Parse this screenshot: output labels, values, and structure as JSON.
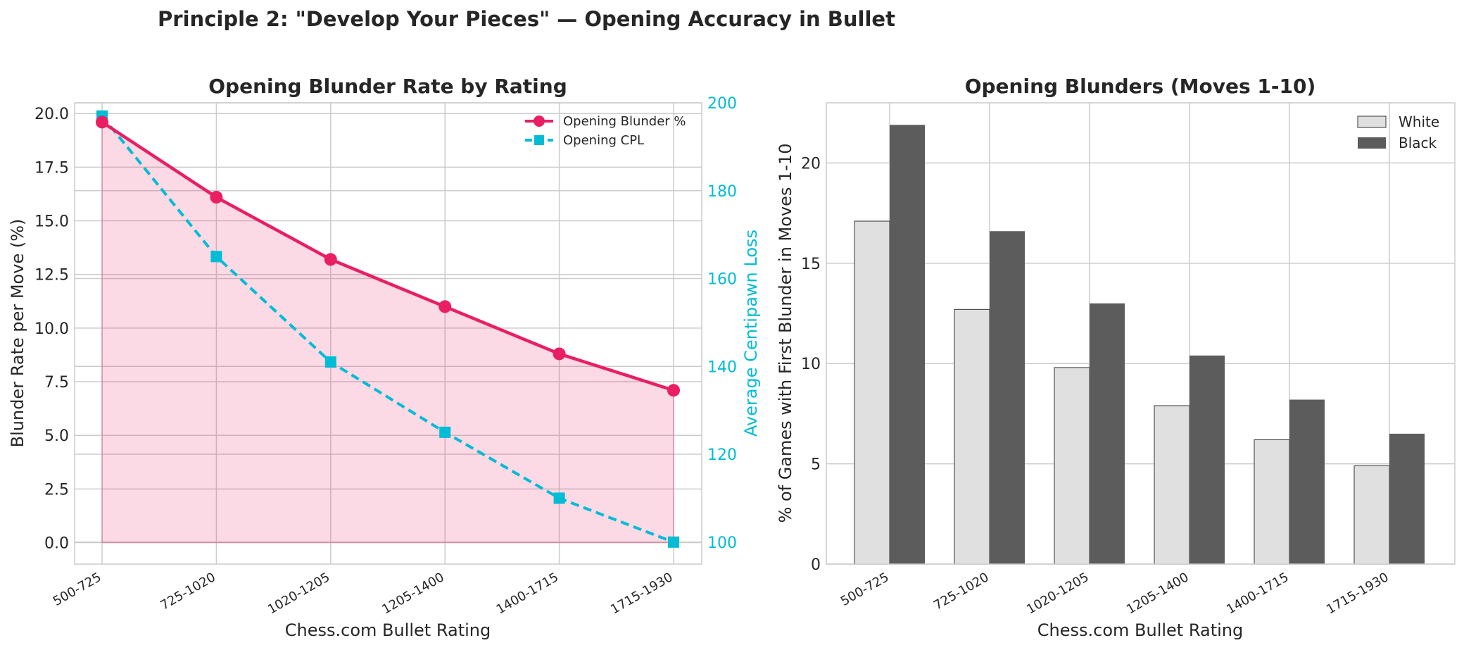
{
  "suptitle": "Principle 2: \"Develop Your Pieces\" — Opening Accuracy in Bullet",
  "colors": {
    "blunder": "#e91e63",
    "blunder_fill": "#f8d1de",
    "cpl": "#00bcd4",
    "white_bar": "#e0e0e0",
    "black_bar": "#5c5c5c",
    "grid": "#cccccc",
    "text": "#262626"
  },
  "chart_data": [
    {
      "type": "line",
      "title": "Opening Blunder Rate by Rating",
      "xlabel": "Chess.com Bullet Rating",
      "ylabel": "Blunder Rate per Move (%)",
      "y2label": "Average Centipawn Loss",
      "categories": [
        "500-725",
        "725-1020",
        "1020-1205",
        "1205-1400",
        "1400-1715",
        "1715-1930"
      ],
      "ylim": [
        -1,
        20.5
      ],
      "yticks": [
        "0.0",
        "2.5",
        "5.0",
        "7.5",
        "10.0",
        "12.5",
        "15.0",
        "17.5",
        "20.0"
      ],
      "y2lim": [
        95,
        200
      ],
      "y2ticks": [
        "100",
        "120",
        "140",
        "160",
        "180",
        "200"
      ],
      "grid": true,
      "legend_position": "top-right",
      "series": [
        {
          "name": "Opening Blunder %",
          "axis": "left",
          "marker": "circle",
          "line": "solid",
          "fill_to_zero": true,
          "values": [
            19.6,
            16.1,
            13.2,
            11.0,
            8.8,
            7.1
          ]
        },
        {
          "name": "Opening CPL",
          "axis": "right",
          "marker": "square",
          "line": "dashed",
          "values": [
            197,
            165,
            141,
            125,
            110,
            100
          ]
        }
      ]
    },
    {
      "type": "bar",
      "title": "Opening Blunders (Moves 1-10)",
      "xlabel": "Chess.com Bullet Rating",
      "ylabel": "% of Games with First Blunder in Moves 1-10",
      "categories": [
        "500-725",
        "725-1020",
        "1020-1205",
        "1205-1400",
        "1400-1715",
        "1715-1930"
      ],
      "ylim": [
        0,
        23
      ],
      "yticks": [
        "0",
        "5",
        "10",
        "15",
        "20"
      ],
      "grid": true,
      "legend_position": "top-right",
      "series": [
        {
          "name": "White",
          "values": [
            17.1,
            12.7,
            9.8,
            7.9,
            6.2,
            4.9
          ]
        },
        {
          "name": "Black",
          "values": [
            21.9,
            16.6,
            13.0,
            10.4,
            8.2,
            6.5
          ]
        }
      ]
    }
  ]
}
